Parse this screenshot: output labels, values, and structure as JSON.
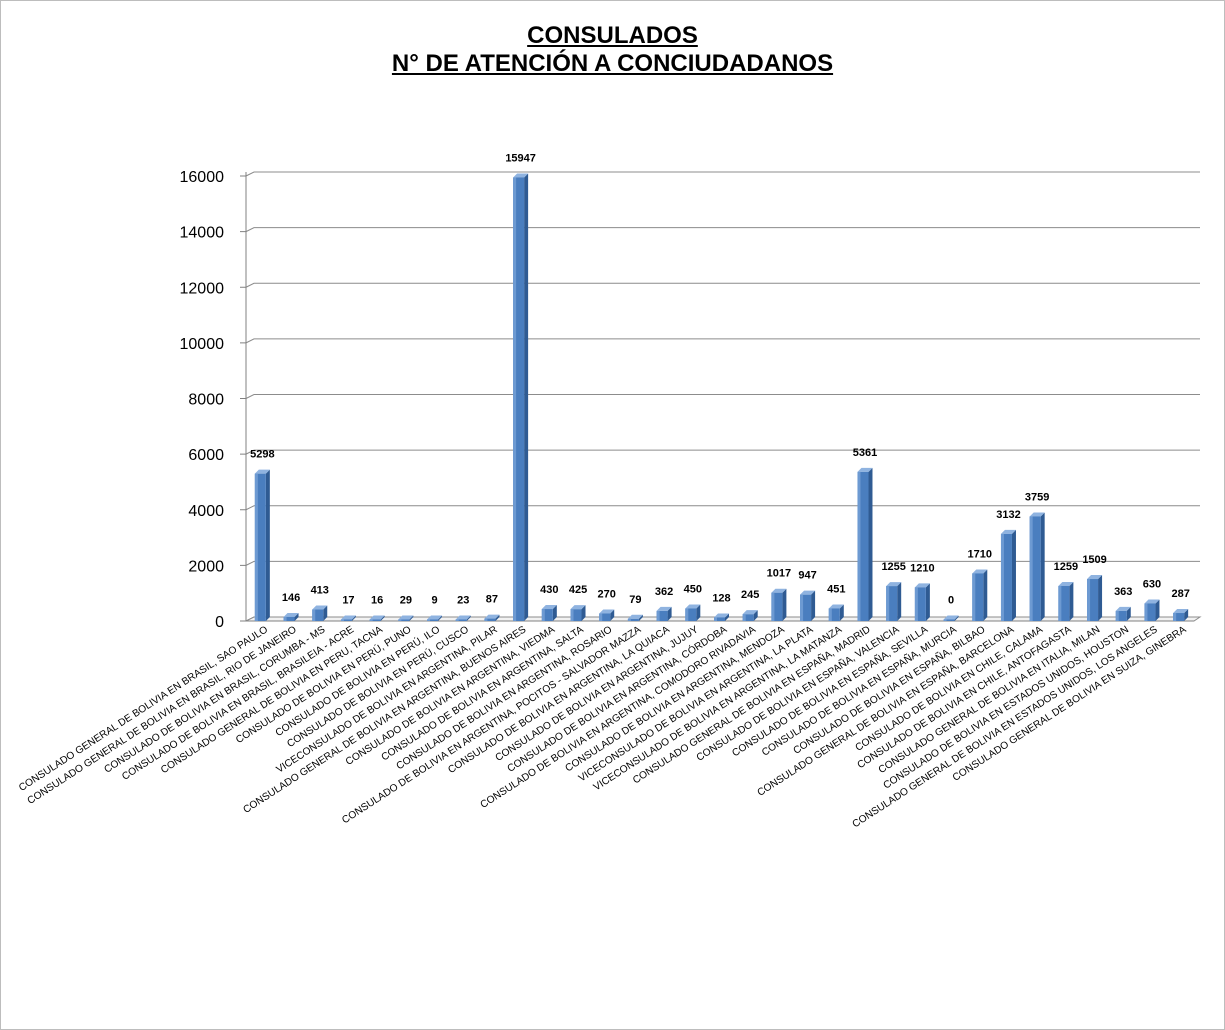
{
  "chart_data": {
    "type": "bar",
    "title": "CONSULADOS",
    "subtitle": "N° DE ATENCIÓN A CONCIUDADANOS",
    "xlabel": "",
    "ylabel": "",
    "ylim": [
      0,
      16000
    ],
    "yticks": [
      0,
      2000,
      4000,
      6000,
      8000,
      10000,
      12000,
      14000,
      16000
    ],
    "grid": true,
    "legend": "none",
    "bar_color": "#4a7ebf",
    "categories": [
      "CONSULADO GENERAL DE BOLIVIA EN BRASIL, SAO PAULO",
      "CONSULADO GENERAL DE BOLIVIA EN BRASIL, RIO DE JANEIRO",
      "CONSULADO DE BOLIVIA EN BRASIL, CORUMBA - MS",
      "CONSULADO DE BOLIVIA EN BRASIL, BRASILEIA - ACRE",
      "CONSULADO GENERAL DE BOLIVIA EN PERU, TACNA",
      "CONSULADO DE BOLIVIA EN PERÚ, PUNO",
      "CONSULADO DE BOLIVIA EN PERÚ, ILO",
      "CONSULADO DE BOLIVIA EN PERÚ, CUSCO",
      "VICECONSULADO DE BOLIVIA EN ARGENTINA, PILAR",
      "CONSULADO GENERAL DE BOLIVIA EN ARGENTINA, BUENOS AIRES",
      "CONSULADO DE BOLIVIA EN ARGENTINA, VIEDMA",
      "CONSULADO DE BOLIVIA EN ARGENTINA, SALTA",
      "CONSULADO DE BOLIVIA EN ARGENTINA, ROSARIO",
      "CONSULADO DE BOLIVIA EN ARGENTINA, POCITOS - SALVADOR MAZZA",
      "CONSULADO DE BOLIVIA EN ARGENTINA, LA QUIACA",
      "CONSULADO DE BOLIVIA EN ARGENTINA, JUJUY",
      "CONSULADO DE BOLIVIA EN ARGENTINA, CÓRDOBA",
      "CONSULADO DE BOLIVIA EN ARGENTINA, COMODORO RIVADAVIA",
      "CONSULADO DE BOLIVIA EN ARGENTINA, MENDOZA",
      "VICECONSULADO DE BOLIVIA EN ARGENTINA, LA PLATA",
      "VICECONSULADO DE BOLIVIA EN ARGENTINA, LA MATANZA",
      "CONSULADO GENERAL DE BOLIVIA EN ESPAÑA, MADRID",
      "CONSULADO DE BOLIVIA EN ESPAÑA, VALENCIA",
      "CONSULADO DE BOLIVIA EN ESPAÑA, SEVILLA",
      "CONSULADO DE BOLIVIA EN ESPAÑA, MURCIA",
      "CONSULADO DE BOLIVIA EN ESPAÑA, BILBAO",
      "CONSULADO GENERAL DE BOLIVIA EN ESPAÑA, BARCELONA",
      "CONSULADO DE BOLIVIA EN CHILE, CALAMA",
      "CONSULADO DE BOLIVIA EN CHILE, ANTOFAGASTA",
      "CONSULADO GENERAL DE BOLIVIA EN ITALIA, MILAN",
      "CONSULADO DE BOLIVIA EN ESTADOS UNIDOS, HOUSTON",
      "CONSULADO GENERAL DE BOLIVIA EN ESTADOS UNIDOS, LOS ANGELES",
      "CONSULADO GENERAL DE BOLIVIA EN SUIZA, GINEBRA"
    ],
    "values": [
      5298,
      146,
      413,
      17,
      16,
      29,
      9,
      23,
      87,
      15947,
      430,
      425,
      270,
      79,
      362,
      450,
      128,
      245,
      1017,
      947,
      451,
      5361,
      1255,
      1210,
      0,
      1710,
      3132,
      3759,
      1259,
      1509,
      363,
      630,
      287
    ]
  }
}
